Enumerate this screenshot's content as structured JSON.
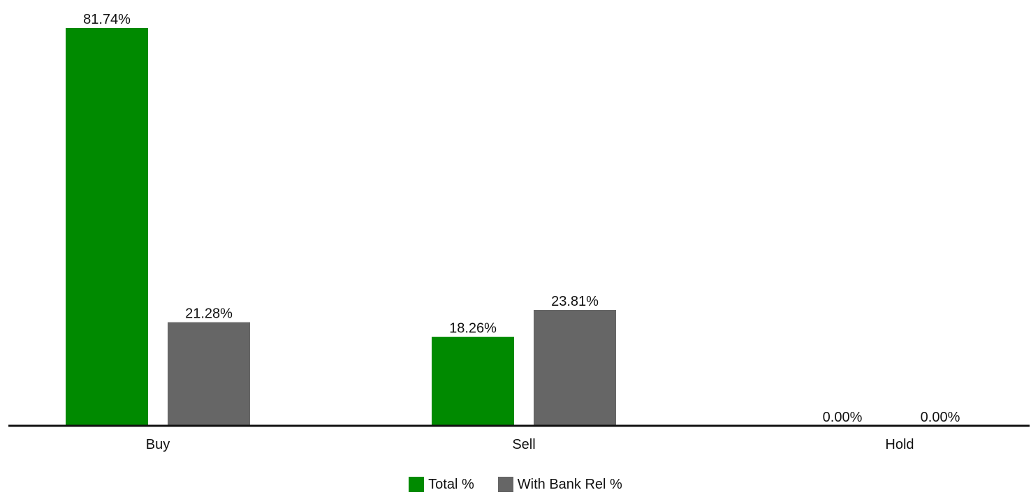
{
  "chart_data": {
    "type": "bar",
    "title": "",
    "xlabel": "",
    "ylabel": "",
    "categories": [
      "Buy",
      "Sell",
      "Hold"
    ],
    "series": [
      {
        "name": "Total %",
        "color": "#008a00",
        "values": [
          81.74,
          18.26,
          0.0
        ],
        "labels": [
          "81.74%",
          "18.26%",
          "0.00%"
        ]
      },
      {
        "name": "With Bank Rel %",
        "color": "#666666",
        "values": [
          21.28,
          23.81,
          0.0
        ],
        "labels": [
          "21.28%",
          "23.81%",
          "0.00%"
        ]
      }
    ],
    "ylim": [
      0,
      81.74
    ],
    "grid": false,
    "legend_position": "bottom"
  }
}
